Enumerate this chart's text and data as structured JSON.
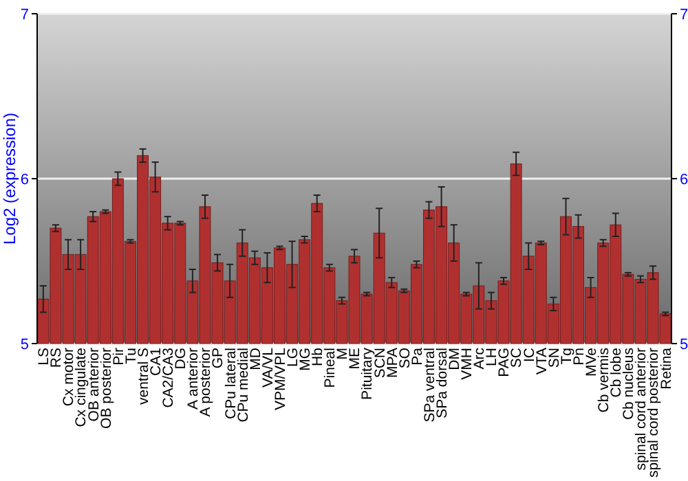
{
  "chart_data": {
    "type": "bar",
    "ylabel": "Log2 (expression)",
    "categories": [
      "LS",
      "RS",
      "Cx motor",
      "Cx cingulate",
      "OB anterior",
      "OB posterior",
      "Pir",
      "Tu",
      "ventral S",
      "CA1",
      "CA2/CA3",
      "DG",
      "A anterior",
      "A posterior",
      "GP",
      "CPu lateral",
      "CPu medial",
      "MD",
      "VA/VL",
      "VPM/VPL",
      "LG",
      "MG",
      "Hb",
      "Pineal",
      "M",
      "ME",
      "Pituitary",
      "SCN",
      "MPA",
      "SO",
      "Pa",
      "SPa ventral",
      "SPa dorsal",
      "DM",
      "VMH",
      "Arc",
      "LH",
      "PAG",
      "SC",
      "IC",
      "VTA",
      "SN",
      "Tg",
      "Pn",
      "MVe",
      "Cb vermis",
      "Cb lobe",
      "Cb nucleus",
      "spinal cord anterior",
      "spinal cord posterior",
      "Retina"
    ],
    "values": [
      5.27,
      5.7,
      5.54,
      5.54,
      5.77,
      5.8,
      6.0,
      5.62,
      6.14,
      6.01,
      5.73,
      5.73,
      5.38,
      5.83,
      5.49,
      5.38,
      5.61,
      5.52,
      5.46,
      5.58,
      5.48,
      5.63,
      5.85,
      5.46,
      5.26,
      5.53,
      5.3,
      5.67,
      5.37,
      5.32,
      5.48,
      5.81,
      5.83,
      5.61,
      5.3,
      5.35,
      5.26,
      5.38,
      6.09,
      5.53,
      5.61,
      5.24,
      5.77,
      5.71,
      5.34,
      5.61,
      5.72,
      5.42,
      5.39,
      5.43,
      5.18
    ],
    "errors": [
      0.08,
      0.02,
      0.09,
      0.09,
      0.03,
      0.01,
      0.04,
      0.01,
      0.04,
      0.09,
      0.04,
      0.01,
      0.07,
      0.07,
      0.05,
      0.1,
      0.08,
      0.04,
      0.09,
      0.01,
      0.14,
      0.02,
      0.05,
      0.02,
      0.02,
      0.04,
      0.01,
      0.15,
      0.03,
      0.01,
      0.02,
      0.05,
      0.12,
      0.11,
      0.01,
      0.14,
      0.05,
      0.02,
      0.07,
      0.08,
      0.01,
      0.04,
      0.11,
      0.07,
      0.06,
      0.02,
      0.07,
      0.01,
      0.02,
      0.04,
      0.01
    ],
    "color": "#b03030",
    "ylim": [
      5,
      7
    ],
    "yticks": [
      5,
      6,
      7
    ],
    "y2lim": [
      5,
      7
    ],
    "y2ticks": [
      5,
      6,
      7
    ],
    "grid": "y"
  }
}
